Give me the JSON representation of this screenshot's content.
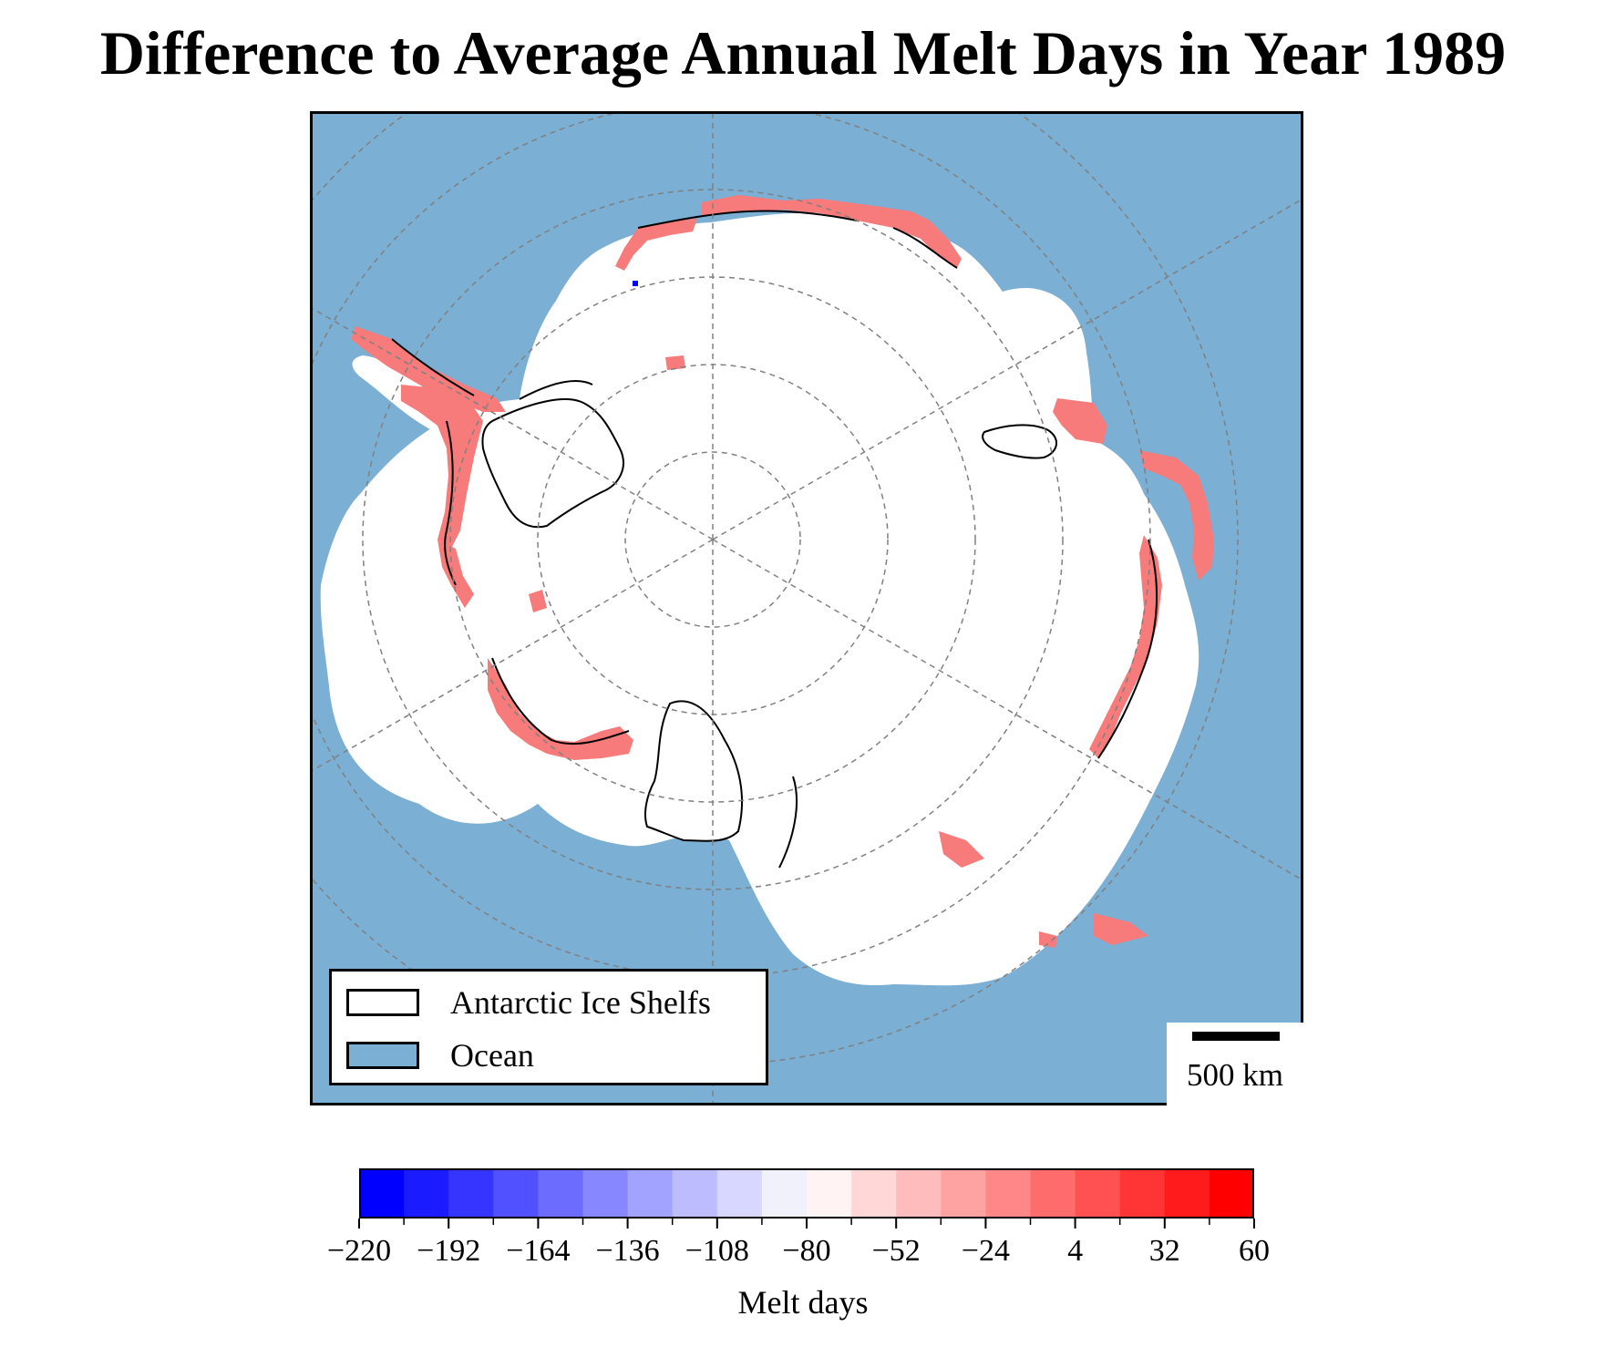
{
  "title": "Difference to Average Annual Melt Days in Year 1989",
  "colors": {
    "ocean": "#7bafd4",
    "ice": "#ffffff",
    "positive_melt": "#f77b7b",
    "negative_melt": "#0000ff",
    "graticule": "#808080",
    "outline": "#000000"
  },
  "legend": {
    "items": [
      {
        "label": "Antarctic Ice Shelfs",
        "fill": "#ffffff",
        "icon": "ice-shelf-swatch"
      },
      {
        "label": "Ocean",
        "fill": "#7bafd4",
        "icon": "ocean-swatch"
      }
    ]
  },
  "scale_bar": {
    "label": "500 km"
  },
  "colorbar": {
    "label": "Melt days",
    "min": -220,
    "max": 60,
    "tick_labels": [
      "−220",
      "−192",
      "−164",
      "−136",
      "−108",
      "−80",
      "−52",
      "−24",
      "4",
      "32",
      "60"
    ],
    "tick_values": [
      -220,
      -192,
      -164,
      -136,
      -108,
      -80,
      -52,
      -24,
      4,
      32,
      60
    ],
    "bin_colors": [
      "#0000ff",
      "#1b1bff",
      "#3535ff",
      "#5151ff",
      "#6c6cff",
      "#8787ff",
      "#a2a2ff",
      "#bcbcff",
      "#d7d7ff",
      "#f1f1fb",
      "#fff3f3",
      "#ffd7d7",
      "#ffbcbc",
      "#ffa2a2",
      "#ff8787",
      "#ff6c6c",
      "#ff5151",
      "#ff3535",
      "#ff1b1b",
      "#ff0000"
    ]
  }
}
